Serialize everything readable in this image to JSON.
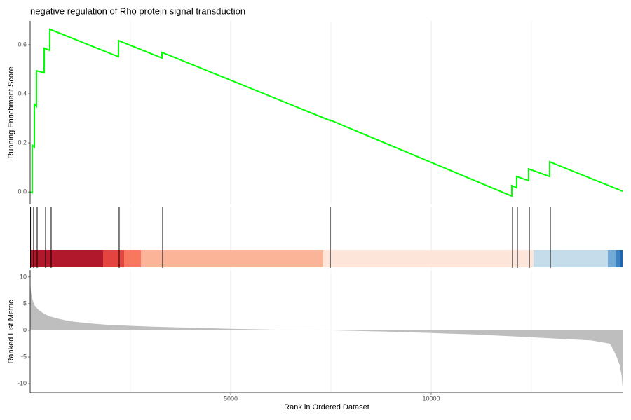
{
  "chart_data": [
    {
      "type": "line",
      "title": "negative regulation of Rho protein signal transduction",
      "ylabel": "Running Enrichment Score",
      "color": "#00ff00",
      "x": [
        0,
        52,
        52,
        105,
        105,
        157,
        157,
        350,
        350,
        490,
        490,
        2203,
        2203,
        3287,
        3287,
        7483,
        7483,
        12010,
        12010,
        12133,
        12133,
        12430,
        12430,
        12955,
        12955,
        14773
      ],
      "values": [
        0,
        -0.003,
        0.191,
        0.183,
        0.357,
        0.349,
        0.494,
        0.486,
        0.586,
        0.577,
        0.663,
        0.551,
        0.617,
        0.546,
        0.569,
        0.291,
        0.293,
        -0.017,
        0.026,
        0.017,
        0.063,
        0.046,
        0.094,
        0.063,
        0.123,
        0.003
      ],
      "xlim": [
        0,
        14773
      ],
      "ylim": [
        -0.051,
        0.697
      ],
      "yticks": [
        {
          "value": 0,
          "label": "0.0"
        },
        0.2,
        0.4,
        0.6
      ],
      "x_minor_grid": [
        2500,
        7500,
        12500
      ],
      "xgrid": [
        5000,
        10000
      ]
    },
    {
      "type": "rug",
      "color": "#000000",
      "x": [
        10,
        87,
        175,
        385,
        524,
        2220,
        3304,
        7483,
        12028,
        12150,
        12448,
        12972
      ],
      "xlim": [
        0,
        14773
      ],
      "heatmap_breaks": [
        0,
        1818,
        2343,
        2762,
        7308,
        12552,
        14406,
        14598,
        14703,
        14773
      ],
      "heatmap_colors": [
        "#b2182b",
        "#e34440",
        "#f7785e",
        "#fcb499",
        "#fde5d9",
        "#c5dcea",
        "#73a9d5",
        "#3d84c0",
        "#2166ac"
      ],
      "x_minor_grid": [
        2500,
        7500,
        12500
      ],
      "xgrid": [
        5000,
        10000
      ]
    },
    {
      "type": "area",
      "xlabel": "Rank in Ordered Dataset",
      "ylabel": "Ranked List Metric",
      "color": "#bebebe",
      "x": [
        0,
        20,
        50,
        100,
        200,
        350,
        500,
        750,
        1000,
        1500,
        2000,
        3000,
        4000,
        5000,
        6000,
        7500,
        9000,
        10000,
        11000,
        12000,
        13000,
        14000,
        14458,
        14600,
        14700,
        14750,
        14773
      ],
      "values": [
        9,
        7.2,
        6,
        4.8,
        3.9,
        3.1,
        2.6,
        2.1,
        1.7,
        1.3,
        1,
        0.7,
        0.5,
        0.3,
        0.15,
        0,
        -0.25,
        -0.5,
        -0.75,
        -1.1,
        -1.5,
        -1.9,
        -2.5,
        -4.5,
        -6.5,
        -8.5,
        -10.8
      ],
      "xlim": [
        0,
        14773
      ],
      "ylim": [
        -11.7,
        11.3
      ],
      "yticks": [
        -10,
        -5,
        0,
        5,
        10
      ],
      "xticks": [
        5000,
        10000
      ],
      "x_minor_grid": [
        2500,
        7500,
        12500
      ],
      "grid": true
    }
  ]
}
